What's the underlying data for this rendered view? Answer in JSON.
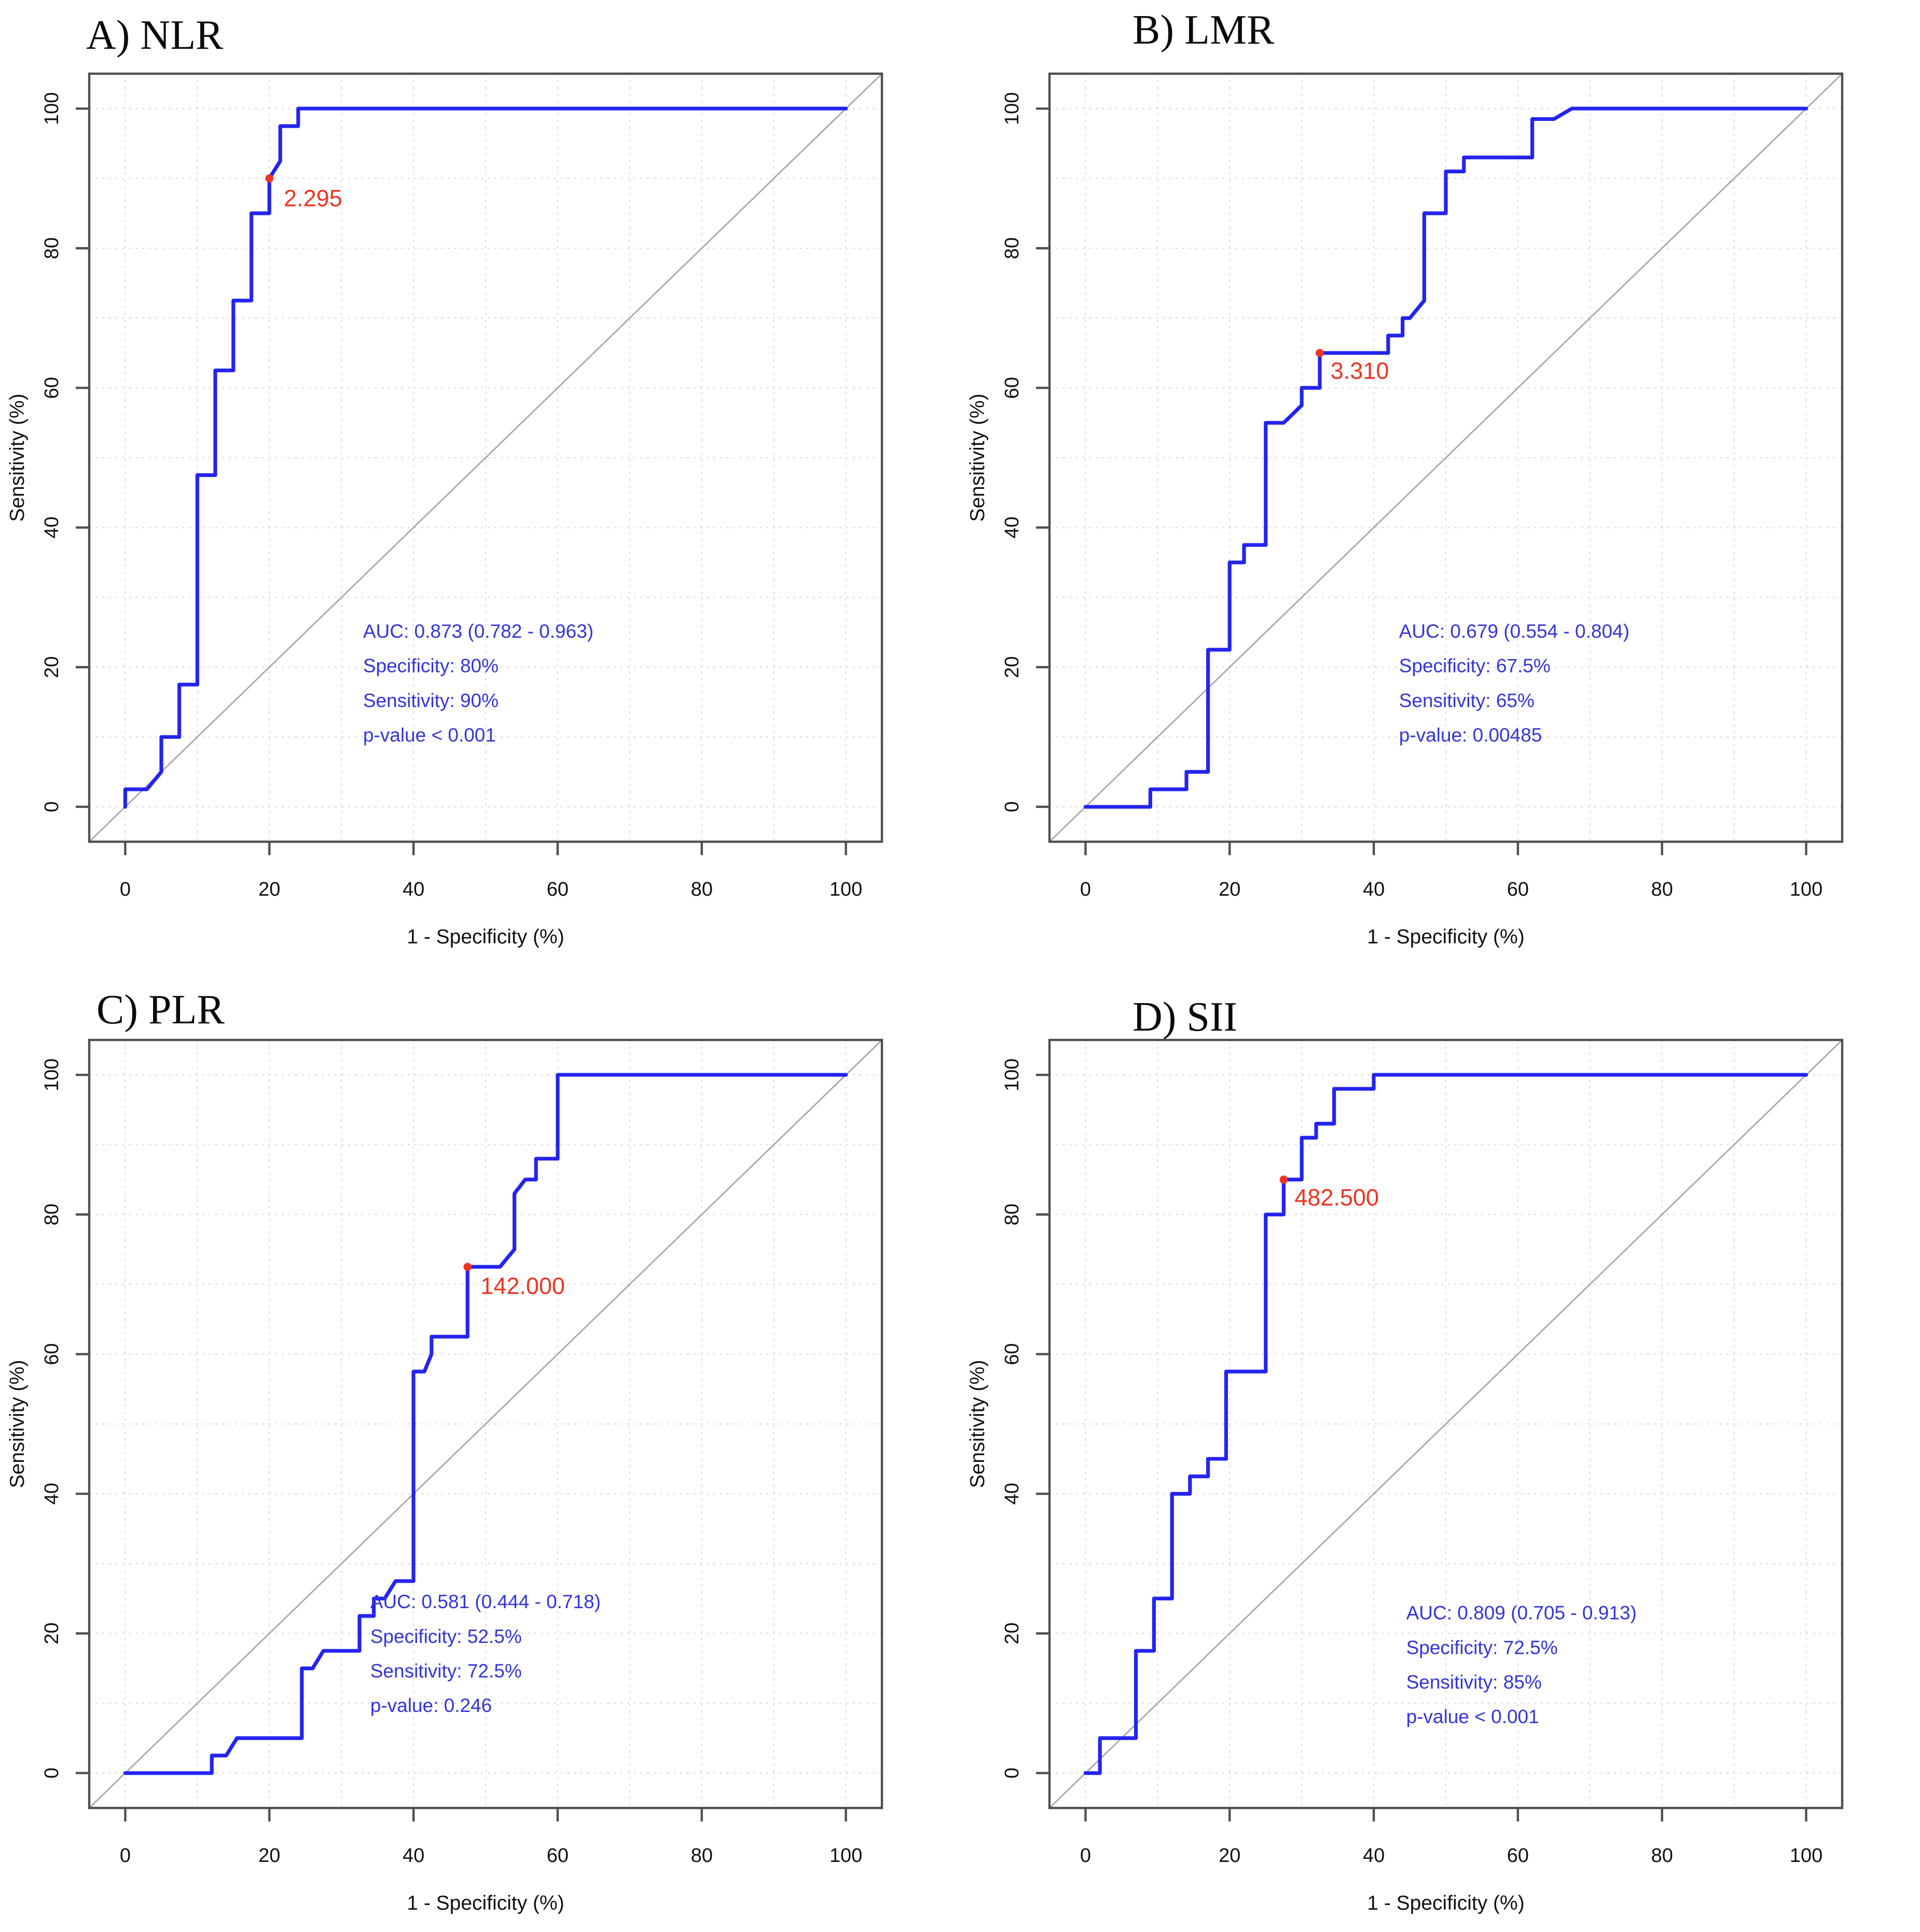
{
  "figure": {
    "type": "roc-curve-panel-figure",
    "panel_count": 4,
    "xlabel": "1 - Specificity (%)",
    "ylabel": "Sensitivity (%)"
  },
  "colors": {
    "curve_blue": "#2424ef",
    "annotation_blue": "#3434d8",
    "cutoff_red": "#ee3322",
    "diagonal_gray": "#a8a8a8",
    "grid_gray": "#d8d8d8",
    "axis_gray": "#4f4f4f",
    "tick_text": "#111111",
    "background": "#ffffff"
  },
  "chart_data": [
    {
      "type": "line",
      "subtype": "roc",
      "title": "A) NLR",
      "xlabel": "1 - Specificity (%)",
      "ylabel": "Sensitivity (%)",
      "xlim": [
        -5,
        105
      ],
      "ylim": [
        -5,
        105
      ],
      "xticks": [
        0,
        20,
        40,
        60,
        80,
        100
      ],
      "yticks": [
        0,
        20,
        40,
        60,
        80,
        100
      ],
      "grid_step": 10,
      "diagonal_reference": true,
      "roc_points": [
        [
          0,
          0
        ],
        [
          0,
          2.5
        ],
        [
          3,
          2.5
        ],
        [
          5,
          5
        ],
        [
          5,
          10
        ],
        [
          7.5,
          10
        ],
        [
          7.5,
          17.5
        ],
        [
          10,
          17.5
        ],
        [
          10,
          47.5
        ],
        [
          12.5,
          47.5
        ],
        [
          12.5,
          62.5
        ],
        [
          15,
          62.5
        ],
        [
          15,
          72.5
        ],
        [
          17.5,
          72.5
        ],
        [
          17.5,
          85
        ],
        [
          20,
          85
        ],
        [
          20,
          90
        ],
        [
          21.5,
          92.5
        ],
        [
          21.5,
          97.5
        ],
        [
          24,
          97.5
        ],
        [
          24,
          100
        ],
        [
          100,
          100
        ]
      ],
      "cutoff": {
        "value_label": "2.295",
        "x": 20,
        "y": 90,
        "label_x": 22,
        "label_y": 86
      },
      "annotation": {
        "x": 33,
        "y": 24.2,
        "line_step": 4.95,
        "lines": [
          "AUC: 0.873 (0.782 - 0.963)",
          "Specificity: 80%",
          "Sensitivity: 90%",
          "p-value < 0.001"
        ]
      },
      "stats": {
        "auc": 0.873,
        "auc_ci_low": 0.782,
        "auc_ci_high": 0.963,
        "specificity_pct": 80,
        "sensitivity_pct": 90,
        "p_value": "< 0.001"
      }
    },
    {
      "type": "line",
      "subtype": "roc",
      "title": "B) LMR",
      "xlabel": "1 - Specificity (%)",
      "ylabel": "Sensitivity (%)",
      "xlim": [
        -5,
        105
      ],
      "ylim": [
        -5,
        105
      ],
      "xticks": [
        0,
        20,
        40,
        60,
        80,
        100
      ],
      "yticks": [
        0,
        20,
        40,
        60,
        80,
        100
      ],
      "grid_step": 10,
      "diagonal_reference": true,
      "roc_points": [
        [
          0,
          0
        ],
        [
          9,
          0
        ],
        [
          9,
          2.5
        ],
        [
          14,
          2.5
        ],
        [
          14,
          5
        ],
        [
          17,
          5
        ],
        [
          17,
          22.5
        ],
        [
          20,
          22.5
        ],
        [
          20,
          35
        ],
        [
          22,
          35
        ],
        [
          22,
          37.5
        ],
        [
          25,
          37.5
        ],
        [
          25,
          55
        ],
        [
          27.5,
          55
        ],
        [
          30,
          57.5
        ],
        [
          30,
          60
        ],
        [
          32.5,
          60
        ],
        [
          32.5,
          65
        ],
        [
          42,
          65
        ],
        [
          42,
          67.5
        ],
        [
          44,
          67.5
        ],
        [
          44,
          70
        ],
        [
          45,
          70
        ],
        [
          47,
          72.5
        ],
        [
          47,
          85
        ],
        [
          50,
          85
        ],
        [
          50,
          91
        ],
        [
          52.5,
          91
        ],
        [
          52.5,
          93
        ],
        [
          62,
          93
        ],
        [
          62,
          98.5
        ],
        [
          65,
          98.5
        ],
        [
          67.5,
          100
        ],
        [
          100,
          100
        ]
      ],
      "cutoff": {
        "value_label": "3.310",
        "x": 32.5,
        "y": 65,
        "label_x": 34,
        "label_y": 61.3
      },
      "annotation": {
        "x": 43.5,
        "y": 24.2,
        "line_step": 4.95,
        "lines": [
          "AUC: 0.679 (0.554 - 0.804)",
          "Specificity: 67.5%",
          "Sensitivity: 65%",
          "p-value: 0.00485"
        ]
      },
      "stats": {
        "auc": 0.679,
        "auc_ci_low": 0.554,
        "auc_ci_high": 0.804,
        "specificity_pct": 67.5,
        "sensitivity_pct": 65,
        "p_value": "0.00485"
      }
    },
    {
      "type": "line",
      "subtype": "roc",
      "title": "C) PLR",
      "xlabel": "1 - Specificity (%)",
      "ylabel": "Sensitivity (%)",
      "xlim": [
        -5,
        105
      ],
      "ylim": [
        -5,
        105
      ],
      "xticks": [
        0,
        20,
        40,
        60,
        80,
        100
      ],
      "yticks": [
        0,
        20,
        40,
        60,
        80,
        100
      ],
      "grid_step": 10,
      "diagonal_reference": true,
      "roc_points": [
        [
          0,
          0
        ],
        [
          12,
          0
        ],
        [
          12,
          2.5
        ],
        [
          14,
          2.5
        ],
        [
          15.5,
          5
        ],
        [
          24.5,
          5
        ],
        [
          24.5,
          15
        ],
        [
          26,
          15
        ],
        [
          27.5,
          17.5
        ],
        [
          32.5,
          17.5
        ],
        [
          32.5,
          22.5
        ],
        [
          34.5,
          22.5
        ],
        [
          34.5,
          25
        ],
        [
          36,
          25
        ],
        [
          37.5,
          27.5
        ],
        [
          40,
          27.5
        ],
        [
          40,
          57.5
        ],
        [
          41.5,
          57.5
        ],
        [
          42.5,
          60
        ],
        [
          42.5,
          62.5
        ],
        [
          47.5,
          62.5
        ],
        [
          47.5,
          72.5
        ],
        [
          52,
          72.5
        ],
        [
          54,
          75
        ],
        [
          54,
          83
        ],
        [
          55.5,
          85
        ],
        [
          57,
          85
        ],
        [
          57,
          88
        ],
        [
          60,
          88
        ],
        [
          60,
          100
        ],
        [
          100,
          100
        ]
      ],
      "cutoff": {
        "value_label": "142.000",
        "x": 47.5,
        "y": 72.5,
        "label_x": 49.3,
        "label_y": 68.6
      },
      "annotation": {
        "x": 34,
        "y": 23.6,
        "line_step": 4.95,
        "lines": [
          "AUC: 0.581 (0.444 - 0.718)",
          "Specificity: 52.5%",
          "Sensitivity: 72.5%",
          "p-value: 0.246"
        ]
      },
      "stats": {
        "auc": 0.581,
        "auc_ci_low": 0.444,
        "auc_ci_high": 0.718,
        "specificity_pct": 52.5,
        "sensitivity_pct": 72.5,
        "p_value": "0.246"
      }
    },
    {
      "type": "line",
      "subtype": "roc",
      "title": "D) SII",
      "xlabel": "1 - Specificity (%)",
      "ylabel": "Sensitivity (%)",
      "xlim": [
        -5,
        105
      ],
      "ylim": [
        -5,
        105
      ],
      "xticks": [
        0,
        20,
        40,
        60,
        80,
        100
      ],
      "yticks": [
        0,
        20,
        40,
        60,
        80,
        100
      ],
      "grid_step": 10,
      "diagonal_reference": true,
      "roc_points": [
        [
          0,
          0
        ],
        [
          2,
          0
        ],
        [
          2,
          5
        ],
        [
          7,
          5
        ],
        [
          7,
          17.5
        ],
        [
          9.5,
          17.5
        ],
        [
          9.5,
          25
        ],
        [
          12,
          25
        ],
        [
          12,
          40
        ],
        [
          14.5,
          40
        ],
        [
          14.5,
          42.5
        ],
        [
          17,
          42.5
        ],
        [
          17,
          45
        ],
        [
          19.5,
          45
        ],
        [
          19.5,
          57.5
        ],
        [
          25,
          57.5
        ],
        [
          25,
          80
        ],
        [
          27.5,
          80
        ],
        [
          27.5,
          85
        ],
        [
          30,
          85
        ],
        [
          30,
          91
        ],
        [
          32,
          91
        ],
        [
          32,
          93
        ],
        [
          34.5,
          93
        ],
        [
          34.5,
          98
        ],
        [
          40,
          98
        ],
        [
          40,
          100
        ],
        [
          100,
          100
        ]
      ],
      "cutoff": {
        "value_label": "482.500",
        "x": 27.5,
        "y": 85,
        "label_x": 29,
        "label_y": 81.3
      },
      "annotation": {
        "x": 44.5,
        "y": 22.0,
        "line_step": 4.95,
        "lines": [
          "AUC: 0.809 (0.705 - 0.913)",
          "Specificity: 72.5%",
          "Sensitivity: 85%",
          "p-value < 0.001"
        ]
      },
      "stats": {
        "auc": 0.809,
        "auc_ci_low": 0.705,
        "auc_ci_high": 0.913,
        "specificity_pct": 72.5,
        "sensitivity_pct": 85,
        "p_value": "< 0.001"
      }
    }
  ]
}
